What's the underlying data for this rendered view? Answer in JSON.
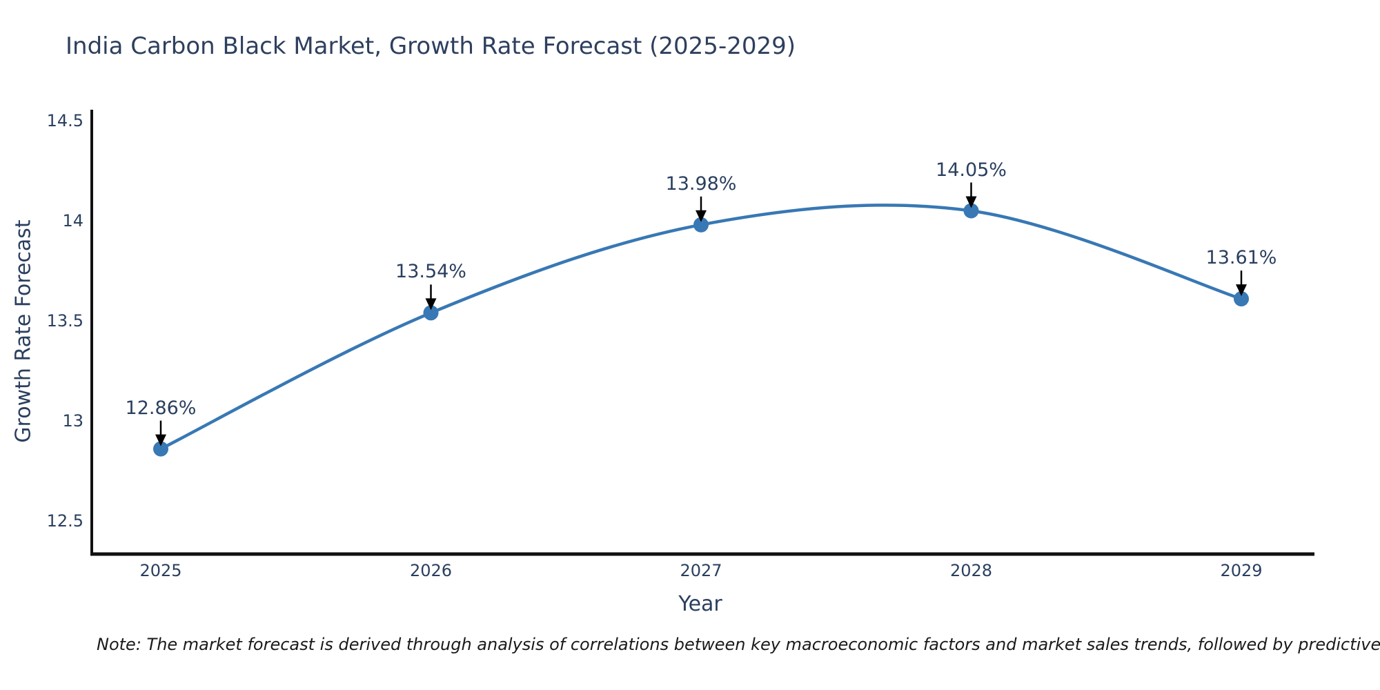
{
  "title": "India Carbon Black Market, Growth Rate Forecast (2025-2029)",
  "footnote": "Note: The market forecast is derived through analysis of correlations between key macroeconomic factors and market sales trends, followed by predictive modeling to project future sal",
  "chart_data": {
    "type": "line",
    "title": "India Carbon Black Market, Growth Rate Forecast (2025-2029)",
    "xlabel": "Year",
    "ylabel": "Growth Rate Forecast",
    "x": [
      2025,
      2026,
      2027,
      2028,
      2029
    ],
    "series": [
      {
        "name": "Growth Rate Forecast",
        "values": [
          12.86,
          13.54,
          13.98,
          14.05,
          13.61
        ]
      }
    ],
    "data_labels": [
      "12.86%",
      "13.54%",
      "13.98%",
      "14.05%",
      "13.61%"
    ],
    "y_ticks": {
      "values": [
        14.5,
        14,
        13.5,
        13,
        12.5
      ],
      "labels": [
        "14.5",
        "14",
        "13.5",
        "13",
        "12.5"
      ]
    },
    "ylim": [
      12.33,
      14.56
    ],
    "line_shape": "spline",
    "grid": false,
    "legend": "none",
    "line_color": "#3878b4",
    "marker_color": "#3878b4",
    "annotation_arrow_color": "#000000",
    "axis_line_color": "#111111"
  },
  "colors": {
    "title_text": "#2e3f5e",
    "tick_text": "#2a3f5f",
    "axis_line": "#111111",
    "note_text": "#1a1a1a"
  }
}
